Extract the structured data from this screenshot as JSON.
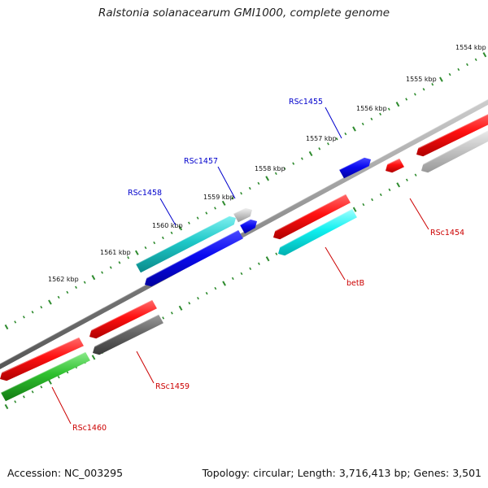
{
  "title": "Ralstonia solanacearum GMI1000, complete genome",
  "footer": {
    "accession": "Accession: NC_003295",
    "summary": "Topology: circular; Length: 3,716,413 bp; Genes: 3,501"
  },
  "colors": {
    "tick": "#2e8b2e",
    "backbone": "#808080",
    "label_blue": "#0000cc",
    "label_red": "#cc0000"
  },
  "kbp_ticks": [
    "1554 kbp",
    "1555 kbp",
    "1556 kbp",
    "1557 kbp",
    "1558 kbp",
    "1559 kbp",
    "1560 kbp",
    "1561 kbp",
    "1562 kbp"
  ],
  "gene_labels": [
    {
      "text": "RSc1455",
      "color": "blue"
    },
    {
      "text": "RSc1457",
      "color": "blue"
    },
    {
      "text": "RSc1458",
      "color": "blue"
    },
    {
      "text": "RSc1454",
      "color": "red"
    },
    {
      "text": "betB",
      "color": "red"
    },
    {
      "text": "RSc1459",
      "color": "red"
    },
    {
      "text": "RSc1460",
      "color": "red"
    }
  ]
}
